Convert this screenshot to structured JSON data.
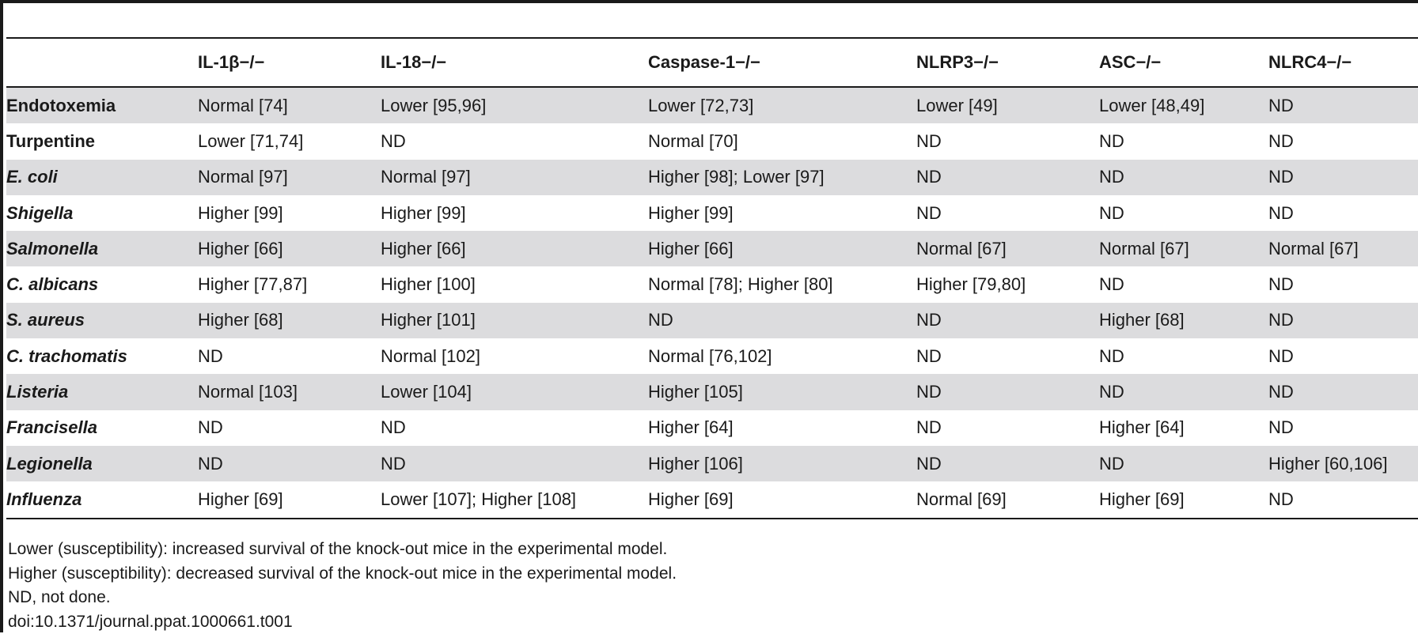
{
  "table": {
    "headers": [
      "",
      "IL-1β−/−",
      "IL-18−/−",
      "Caspase-1−/−",
      "NLRP3−/−",
      "ASC−/−",
      "NLRC4−/−"
    ],
    "rows": [
      {
        "label": "Endotoxemia",
        "italic": false,
        "cells": [
          "Normal [74]",
          "Lower [95,96]",
          "Lower [72,73]",
          "Lower [49]",
          "Lower [48,49]",
          "ND"
        ]
      },
      {
        "label": "Turpentine",
        "italic": false,
        "cells": [
          "Lower [71,74]",
          "ND",
          "Normal [70]",
          "ND",
          "ND",
          "ND"
        ]
      },
      {
        "label": "E. coli",
        "italic": true,
        "cells": [
          "Normal [97]",
          "Normal [97]",
          "Higher [98]; Lower [97]",
          "ND",
          "ND",
          "ND"
        ]
      },
      {
        "label": "Shigella",
        "italic": true,
        "cells": [
          "Higher [99]",
          "Higher [99]",
          "Higher [99]",
          "ND",
          "ND",
          "ND"
        ]
      },
      {
        "label": "Salmonella",
        "italic": true,
        "cells": [
          "Higher [66]",
          "Higher [66]",
          "Higher [66]",
          "Normal [67]",
          "Normal [67]",
          "Normal [67]"
        ]
      },
      {
        "label": "C. albicans",
        "italic": true,
        "cells": [
          "Higher [77,87]",
          "Higher [100]",
          "Normal [78]; Higher [80]",
          "Higher [79,80]",
          "ND",
          "ND"
        ]
      },
      {
        "label": "S. aureus",
        "italic": true,
        "cells": [
          "Higher [68]",
          "Higher [101]",
          "ND",
          "ND",
          "Higher [68]",
          "ND"
        ]
      },
      {
        "label": "C. trachomatis",
        "italic": true,
        "cells": [
          "ND",
          "Normal [102]",
          "Normal [76,102]",
          "ND",
          "ND",
          "ND"
        ]
      },
      {
        "label": "Listeria",
        "italic": true,
        "cells": [
          "Normal [103]",
          "Lower [104]",
          "Higher [105]",
          "ND",
          "ND",
          "ND"
        ]
      },
      {
        "label": "Francisella",
        "italic": true,
        "cells": [
          "ND",
          "ND",
          "Higher [64]",
          "ND",
          "Higher [64]",
          "ND"
        ]
      },
      {
        "label": "Legionella",
        "italic": true,
        "cells": [
          "ND",
          "ND",
          "Higher [106]",
          "ND",
          "ND",
          "Higher [60,106]"
        ]
      },
      {
        "label": "Influenza",
        "italic": true,
        "cells": [
          "Higher [69]",
          "Lower [107]; Higher [108]",
          "Higher [69]",
          "Normal [69]",
          "Higher [69]",
          "ND"
        ]
      }
    ]
  },
  "footnotes": [
    "Lower (susceptibility): increased survival of the knock-out mice in the experimental model.",
    "Higher (susceptibility): decreased survival of the knock-out mice in the experimental model.",
    "ND, not done.",
    "doi:10.1371/journal.ppat.1000661.t001"
  ]
}
